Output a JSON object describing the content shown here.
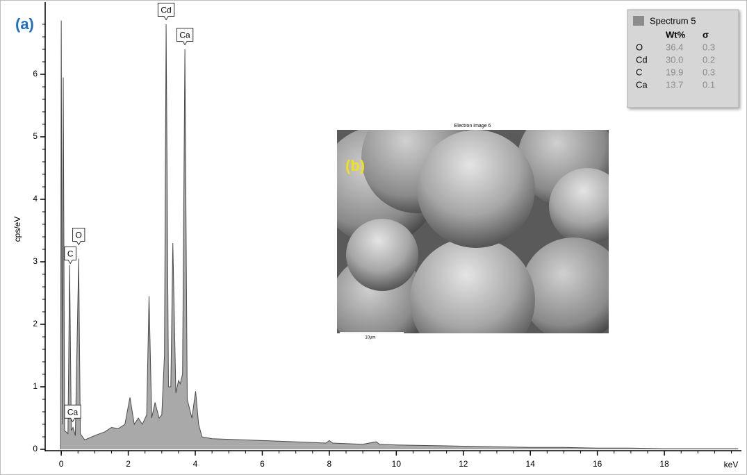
{
  "chart_data": {
    "type": "area",
    "panel_label": "(a)",
    "y_label": "cps/eV",
    "x_label": "keV",
    "color": "#a9a9a9",
    "line_color": "#4a4a4a",
    "xlim": [
      -0.48,
      20.3
    ],
    "ylim": [
      0,
      7
    ],
    "xticks": [
      0,
      2,
      4,
      6,
      8,
      10,
      12,
      14,
      16,
      18
    ],
    "yticks": [
      0,
      1,
      2,
      3,
      4,
      5,
      6
    ],
    "xminorticks": [
      0.5,
      1,
      1.5,
      2.5,
      3,
      3.5,
      4.5,
      5,
      5.5,
      6.5,
      7,
      7.5,
      8.5,
      9,
      9.5,
      10.5,
      11,
      11.5,
      12.5,
      13,
      13.5,
      14.5,
      15,
      15.5,
      16.5,
      17,
      17.5,
      18.5,
      19,
      19.5,
      20
    ],
    "yminorticks": [
      0.2,
      0.4,
      0.6,
      0.8,
      1.2,
      1.4,
      1.6,
      1.8,
      2.2,
      2.4,
      2.6,
      2.8,
      3.2,
      3.4,
      3.6,
      3.8,
      4.2,
      4.4,
      4.6,
      4.8,
      5.2,
      5.4,
      5.6,
      5.8,
      6.2,
      6.4,
      6.6,
      6.8
    ],
    "x": [
      -0.02,
      0.0,
      0.03,
      0.06,
      0.1,
      0.2,
      0.25,
      0.3,
      0.35,
      0.42,
      0.52,
      0.57,
      0.7,
      1.0,
      1.3,
      1.5,
      1.7,
      1.9,
      2.05,
      2.18,
      2.3,
      2.42,
      2.55,
      2.62,
      2.7,
      2.8,
      2.92,
      3.0,
      3.08,
      3.13,
      3.2,
      3.27,
      3.33,
      3.42,
      3.5,
      3.55,
      3.62,
      3.69,
      3.76,
      3.9,
      4.01,
      4.1,
      4.2,
      4.5,
      5,
      6,
      7,
      7.9,
      8.0,
      8.1,
      9,
      9.4,
      9.5,
      10,
      11,
      12,
      13,
      14,
      15,
      16,
      17,
      18,
      19,
      20.2
    ],
    "values": [
      0,
      6.86,
      0.4,
      5.95,
      0.3,
      0.25,
      2.95,
      0.3,
      0.35,
      0.22,
      3.05,
      0.25,
      0.15,
      0.22,
      0.28,
      0.35,
      0.33,
      0.4,
      0.83,
      0.4,
      0.5,
      0.4,
      0.55,
      2.45,
      0.5,
      0.75,
      0.5,
      0.55,
      1.5,
      6.8,
      1.0,
      1.0,
      3.3,
      0.9,
      1.1,
      1.05,
      1.2,
      6.4,
      0.8,
      0.5,
      0.93,
      0.4,
      0.2,
      0.17,
      0.16,
      0.14,
      0.12,
      0.1,
      0.14,
      0.1,
      0.08,
      0.12,
      0.08,
      0.07,
      0.06,
      0.05,
      0.04,
      0.03,
      0.03,
      0.02,
      0.02,
      0.01,
      0.01,
      0.01
    ],
    "annotations": [
      {
        "text": "Cd",
        "x": 3.13,
        "y": 6.85
      },
      {
        "text": "Ca",
        "x": 3.69,
        "y": 6.45
      },
      {
        "text": "C",
        "x": 0.27,
        "y": 2.95
      },
      {
        "text": "O",
        "x": 0.52,
        "y": 3.25
      },
      {
        "text": "Ca",
        "x": 0.34,
        "y": 0.42
      }
    ],
    "legend": {
      "title": "Spectrum 5",
      "swatch": "#8c8c8c",
      "columns": [
        "Wt%",
        "σ"
      ],
      "rows": [
        [
          "O",
          "36.4",
          "0.3"
        ],
        [
          "Cd",
          "30.0",
          "0.2"
        ],
        [
          "C",
          "19.9",
          "0.3"
        ],
        [
          "Ca",
          "13.7",
          "0.1"
        ]
      ]
    },
    "inset": {
      "title": "Electron Image 6",
      "label": "(b)",
      "scale_label": "10µm"
    }
  }
}
